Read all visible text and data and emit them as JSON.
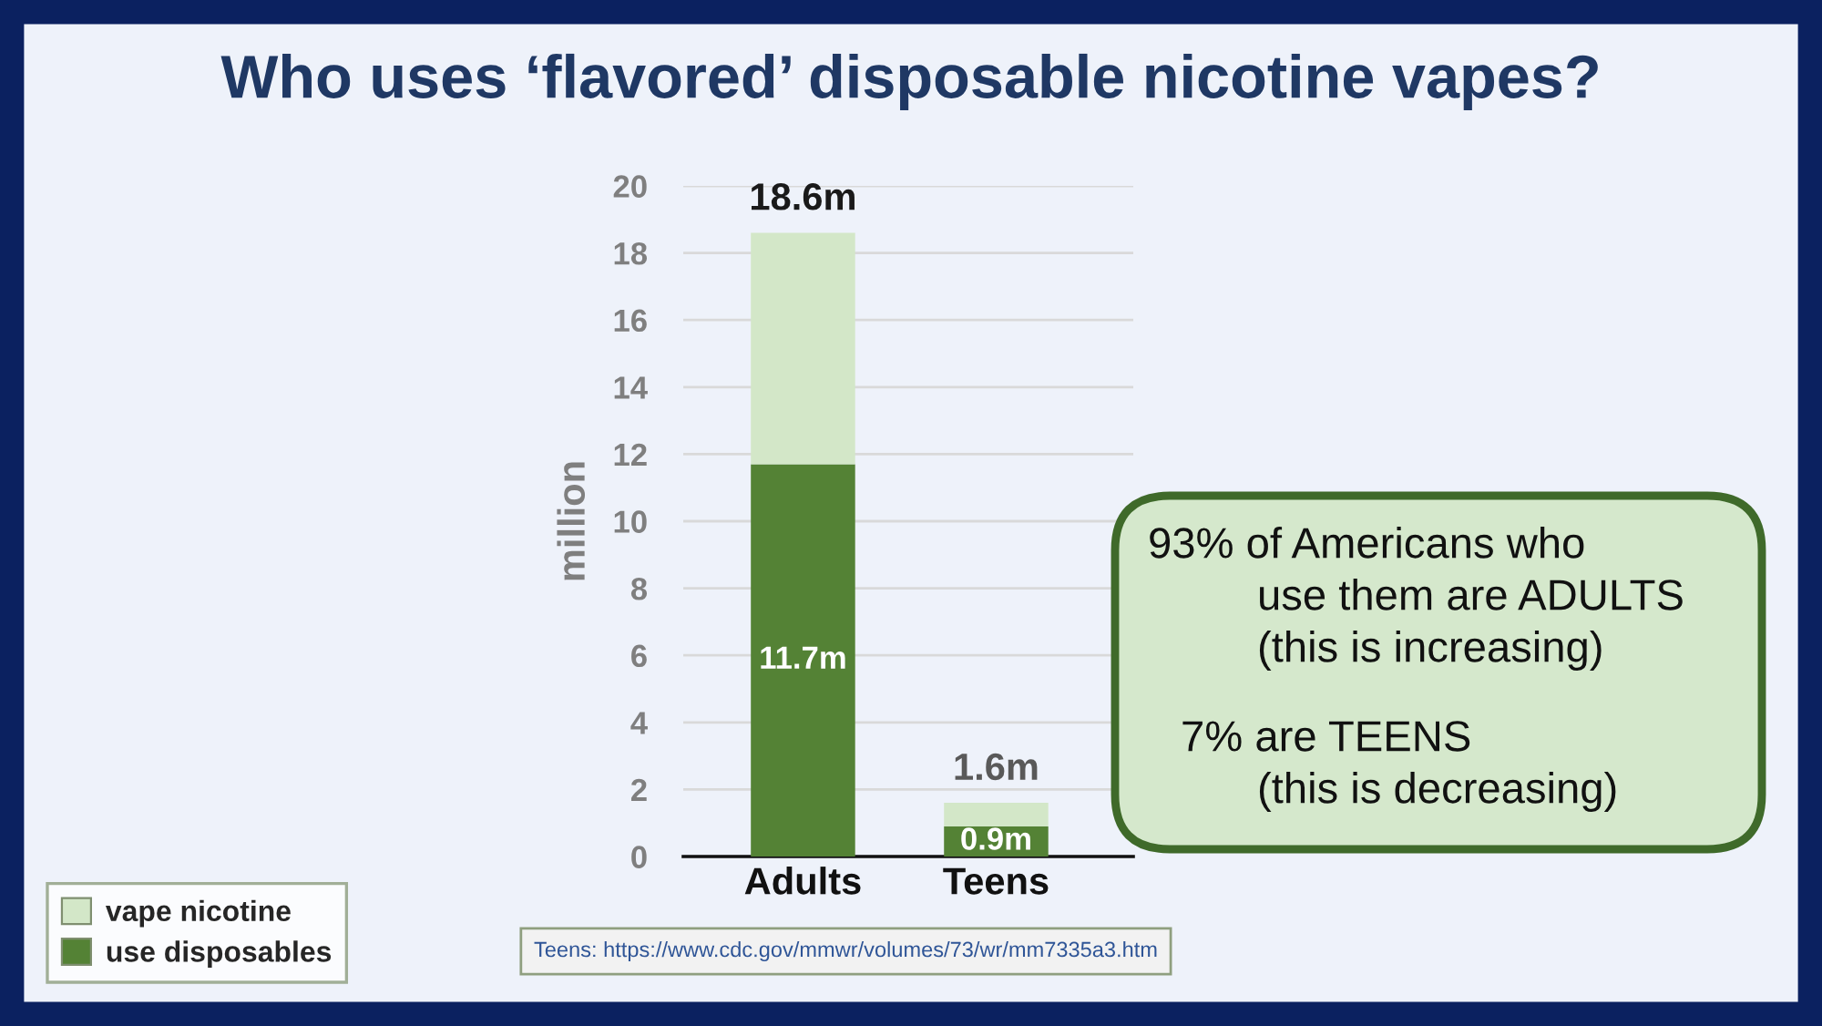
{
  "chart_data": {
    "type": "bar",
    "title": "Who uses ‘flavored’ disposable nicotine vapes?",
    "ylabel": "million",
    "categories": [
      "Adults",
      "Teens"
    ],
    "stacked": true,
    "series": [
      {
        "name": "use disposables",
        "color": "#548235",
        "values": [
          11.7,
          0.9
        ],
        "value_labels": [
          "11.7m",
          "0.9m"
        ]
      },
      {
        "name": "vape nicotine",
        "color": "#d3e7c8",
        "values": [
          6.9,
          0.7
        ]
      }
    ],
    "totals": [
      "18.6m",
      "1.6m"
    ],
    "ylim": [
      0,
      20
    ],
    "yticks": [
      0,
      2,
      4,
      6,
      8,
      10,
      12,
      14,
      16,
      18,
      20
    ],
    "grid": "y",
    "legend": "bottom left",
    "annotations": [
      "93% of Americans who\nuse them are ADULTS\n(this is increasing)",
      "7% are TEENS\n(this is decreasing)",
      "Teens: https://www.cdc.gov/mmwr/volumes/73/wr/mm7335a3.htm"
    ]
  }
}
